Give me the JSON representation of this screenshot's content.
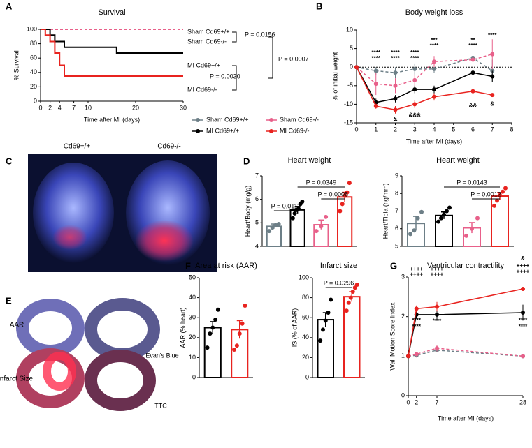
{
  "panel_labels": [
    "A",
    "B",
    "C",
    "D",
    "E",
    "F",
    "G"
  ],
  "images": {
    "heart_left": "Cd69+/+",
    "heart_right": "Cd69-/-",
    "row_top": "AAR",
    "stain_top": "Evan's Blue",
    "row_bottom": "Infarct Size",
    "stain_bottom": "TTC"
  },
  "chart_data": [
    {
      "type": "step",
      "title": "Survival",
      "x_label": "Time after MI (days)",
      "y_label": "% Survival",
      "xlim": [
        0,
        30
      ],
      "xticks": [
        0,
        2,
        4,
        7,
        10,
        20,
        30
      ],
      "ylim": [
        0,
        100
      ],
      "yticks": [
        0,
        20,
        40,
        60,
        80,
        100
      ],
      "series": [
        {
          "name": "Sham Cd69+/+",
          "color": "#6d7f87",
          "line_style": "dashed",
          "x": [
            0,
            30
          ],
          "values": [
            100,
            100
          ]
        },
        {
          "name": "Sham Cd69-/-",
          "color": "#e8608a",
          "line_style": "dashed",
          "x": [
            0,
            30
          ],
          "values": [
            100,
            100
          ]
        },
        {
          "name": "MI Cd69+/+",
          "color": "#000000",
          "line_style": "solid",
          "x": [
            0,
            2,
            3,
            5,
            16,
            30
          ],
          "values": [
            100,
            92,
            83,
            75,
            67,
            67
          ]
        },
        {
          "name": "MI Cd69-/-",
          "color": "#e8231f",
          "line_style": "solid",
          "x": [
            0,
            1,
            2,
            3,
            4,
            5,
            30
          ],
          "values": [
            100,
            92,
            83,
            67,
            50,
            35,
            35
          ]
        }
      ],
      "comparisons": [
        "P = 0.0156",
        "P = 0.0030",
        "P = 0.0007"
      ]
    },
    {
      "type": "line",
      "title": "Body weight loss",
      "x_label": "Time after MI (days)",
      "y_label": "% of initial weight",
      "xlim": [
        0,
        8
      ],
      "xticks": [
        0,
        1,
        2,
        3,
        4,
        5,
        6,
        7,
        8
      ],
      "ylim": [
        -15,
        10
      ],
      "yticks": [
        -15,
        -10,
        -5,
        0,
        5,
        10
      ],
      "zero_line": true,
      "series": [
        {
          "name": "Sham Cd69+/+",
          "color": "#6d7f87",
          "line_style": "dashed",
          "x": [
            0,
            1,
            2,
            3,
            4,
            6,
            7
          ],
          "values": [
            0,
            -1,
            -1.5,
            -0.5,
            -0.5,
            2.5,
            -1
          ],
          "errors": [
            0,
            1,
            1.5,
            1.5,
            1,
            1.5,
            3
          ]
        },
        {
          "name": "Sham Cd69-/-",
          "color": "#e8608a",
          "line_style": "dashed",
          "x": [
            0,
            1,
            2,
            3,
            4,
            6,
            7
          ],
          "values": [
            0,
            -4.5,
            -5,
            -3.5,
            1.5,
            2,
            3.5
          ],
          "errors": [
            0,
            3,
            2,
            1.5,
            1.5,
            1,
            4
          ]
        },
        {
          "name": "MI Cd69+/+",
          "color": "#000000",
          "line_style": "solid",
          "x": [
            0,
            1,
            2,
            3,
            4,
            6,
            7
          ],
          "values": [
            0,
            -9.5,
            -8.5,
            -6,
            -6,
            -1.5,
            -2.5
          ],
          "errors": [
            0,
            1,
            1,
            1,
            1,
            1,
            1.5
          ]
        },
        {
          "name": "MI Cd69-/-",
          "color": "#e8231f",
          "line_style": "solid",
          "x": [
            0,
            1,
            2,
            3,
            4,
            6,
            7
          ],
          "values": [
            0,
            -10.5,
            -11.5,
            -10,
            -8,
            -6.5,
            -7.5
          ],
          "errors": [
            0,
            0.7,
            1,
            1,
            1,
            2,
            0.5
          ]
        }
      ],
      "annotations": [
        {
          "text": "****",
          "color": "#555555"
        },
        {
          "text": "****",
          "color": "#e8608a"
        },
        {
          "text": "****",
          "color": "#333333"
        },
        {
          "text": "****",
          "color": "#e8608a"
        },
        {
          "text": "****",
          "color": "#000000"
        },
        {
          "text": "****",
          "color": "#e8608a"
        },
        {
          "text": "***",
          "color": "#000000"
        },
        {
          "text": "****",
          "color": "#e8608a"
        },
        {
          "text": "**",
          "color": "#000000"
        },
        {
          "text": "****",
          "color": "#e8608a"
        },
        {
          "text": "****",
          "color": "#e8608a"
        },
        {
          "text": "&",
          "color": "#000000"
        },
        {
          "text": "&&&",
          "color": "#000000"
        },
        {
          "text": "&&",
          "color": "#000000"
        },
        {
          "text": "&",
          "color": "#000000"
        }
      ]
    },
    {
      "type": "bar",
      "title": "Heart weight",
      "y_label": "Heart/Body (mg/g)",
      "categories": [
        null,
        null,
        null,
        null
      ],
      "values": [
        4.85,
        5.55,
        4.92,
        6.1
      ],
      "errors": [
        0.1,
        0.15,
        0.2,
        0.2
      ],
      "colors": [
        "#6d7f87",
        "#000000",
        "#e8608a",
        "#e8231f"
      ],
      "points": [
        [
          4.65,
          4.8,
          4.9,
          4.95
        ],
        [
          5.2,
          5.4,
          5.55,
          5.6,
          5.8,
          5.9
        ],
        [
          4.65,
          4.85,
          5.25
        ],
        [
          5.5,
          5.8,
          6.15,
          6.3,
          6.7
        ]
      ],
      "ylim": [
        4,
        7
      ],
      "yticks": [
        4,
        5,
        6,
        7
      ],
      "comparisons": [
        "P = 0.0111",
        "P = 0.0349",
        "P = 0.0008"
      ]
    },
    {
      "type": "bar",
      "title": "Heart weight",
      "y_label": "Heart/Tibia (ng/mm)",
      "categories": [
        null,
        null,
        null,
        null
      ],
      "values": [
        6.3,
        6.75,
        6.05,
        7.85
      ],
      "errors": [
        0.4,
        0.2,
        0.3,
        0.2
      ],
      "colors": [
        "#6d7f87",
        "#000000",
        "#e8608a",
        "#e8231f"
      ],
      "points": [
        [
          5.7,
          5.9,
          6.6,
          6.95
        ],
        [
          6.4,
          6.6,
          6.8,
          7.0,
          7.2
        ],
        [
          5.6,
          6.0,
          6.6
        ],
        [
          7.3,
          7.6,
          7.9,
          8.1,
          8.3
        ]
      ],
      "ylim": [
        5,
        9
      ],
      "yticks": [
        5,
        6,
        7,
        8,
        9
      ],
      "comparisons": [
        "P = 0.0143",
        "P = 0.0012"
      ]
    },
    {
      "type": "bar",
      "title": "Area at risk (AAR)",
      "y_label": "AAR (% heart)",
      "categories": [
        null,
        null
      ],
      "values": [
        25,
        24
      ],
      "errors": [
        3,
        4.5
      ],
      "colors": [
        "#000000",
        "#e8231f"
      ],
      "points": [
        [
          15,
          22,
          25,
          29,
          34
        ],
        [
          14,
          16,
          22,
          27,
          36
        ]
      ],
      "ylim": [
        0,
        50
      ],
      "yticks": [
        0,
        10,
        20,
        30,
        40,
        50
      ]
    },
    {
      "type": "bar",
      "title": "Infarct size",
      "y_label": "IS (% of AAR)",
      "categories": [
        null,
        null
      ],
      "values": [
        58,
        81
      ],
      "errors": [
        7,
        5
      ],
      "colors": [
        "#000000",
        "#e8231f"
      ],
      "points": [
        [
          37,
          48,
          57,
          65,
          78
        ],
        [
          67,
          75,
          80,
          86,
          90,
          93
        ]
      ],
      "ylim": [
        0,
        100
      ],
      "yticks": [
        0,
        20,
        40,
        60,
        80,
        100
      ],
      "comparisons": [
        "P = 0.0296"
      ]
    },
    {
      "type": "line",
      "title": "Ventricular contractility",
      "x_label": "Time after MI (days)",
      "y_label": "Wall Motion Score Index",
      "xlim": [
        0,
        28
      ],
      "xticks": [
        0,
        2,
        7,
        28
      ],
      "ylim": [
        0,
        3
      ],
      "yticks": [
        0,
        1,
        2,
        3
      ],
      "series": [
        {
          "name": "Sham Cd69+/+",
          "color": "#6d7f87",
          "line_style": "dashed",
          "x": [
            0,
            2,
            7,
            28
          ],
          "values": [
            1,
            1.02,
            1.15,
            1.0
          ],
          "errors": [
            0,
            0.03,
            0.05,
            0
          ]
        },
        {
          "name": "Sham Cd69-/-",
          "color": "#e8608a",
          "line_style": "dashed",
          "x": [
            0,
            2,
            7,
            28
          ],
          "values": [
            1,
            1.05,
            1.2,
            1.0
          ],
          "errors": [
            0,
            0.05,
            0.08,
            0
          ]
        },
        {
          "name": "MI Cd69+/+",
          "color": "#000000",
          "line_style": "solid",
          "x": [
            0,
            2,
            7,
            28
          ],
          "values": [
            1,
            2.05,
            2.05,
            2.1
          ],
          "errors": [
            0,
            0.1,
            0.15,
            0.2
          ]
        },
        {
          "name": "MI Cd69-/-",
          "color": "#e8231f",
          "line_style": "solid",
          "x": [
            0,
            2,
            7,
            28
          ],
          "values": [
            1,
            2.2,
            2.25,
            2.7
          ],
          "errors": [
            0,
            0.08,
            0.12,
            0.05
          ]
        }
      ],
      "annotations": [
        {
          "text": "&",
          "color": "#000000"
        },
        {
          "text": "++++",
          "color": "#000000"
        },
        {
          "text": "++++",
          "color": "#e8231f"
        },
        {
          "text": "++++",
          "color": "#000000"
        },
        {
          "text": "++++",
          "color": "#e8231f"
        },
        {
          "text": "++++",
          "color": "#000000"
        },
        {
          "text": "++++",
          "color": "#e8231f"
        },
        {
          "text": "****",
          "color": "#e8608a"
        },
        {
          "text": "****",
          "color": "#6d7f87"
        },
        {
          "text": "****",
          "color": "#6d7f87"
        },
        {
          "text": "****",
          "color": "#e8608a"
        },
        {
          "text": "****",
          "color": "#6d7f87"
        }
      ]
    }
  ]
}
